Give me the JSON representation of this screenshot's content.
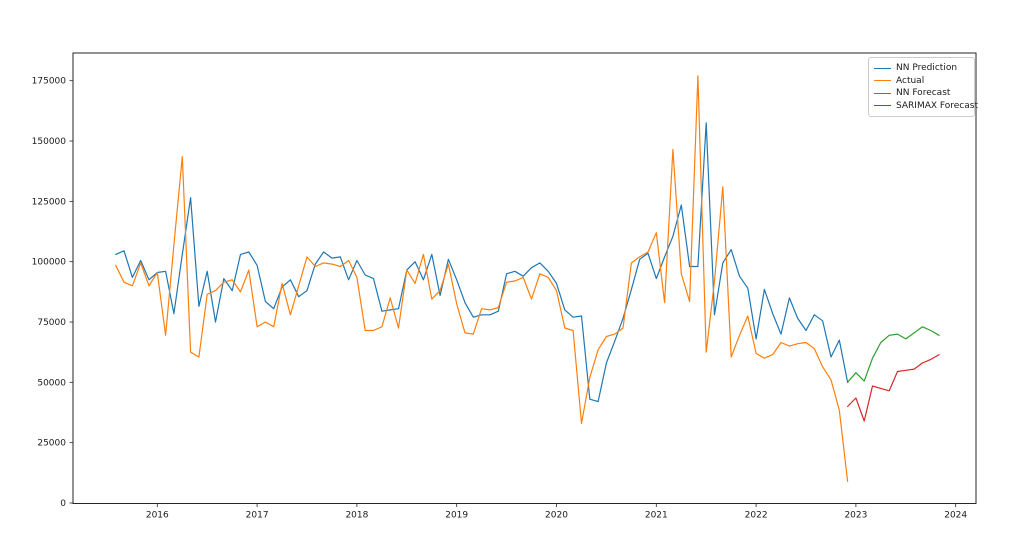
{
  "figure": {
    "background": "#ffffff",
    "plot_border_color": "#262626"
  },
  "chart_data": {
    "type": "line",
    "title": "",
    "xlabel": "",
    "ylabel": "",
    "grid": false,
    "x_axis": {
      "tick_labels": [
        "2016",
        "2017",
        "2018",
        "2019",
        "2020",
        "2021",
        "2022",
        "2023",
        "2024"
      ],
      "tick_years": [
        2016,
        2017,
        2018,
        2019,
        2020,
        2021,
        2022,
        2023,
        2024
      ]
    },
    "y_axis": {
      "tick_labels": [
        "0",
        "25000",
        "50000",
        "75000",
        "100000",
        "125000",
        "150000",
        "175000"
      ],
      "tick_values": [
        0,
        25000,
        50000,
        75000,
        100000,
        125000,
        150000,
        175000
      ],
      "ylim": [
        0,
        186500
      ]
    },
    "legend": {
      "position": "upper right",
      "entries": [
        {
          "label": "NN Prediction",
          "color": "#1f77b4"
        },
        {
          "label": "Actual",
          "color": "#ff7f0e"
        },
        {
          "label": "NN Forecast",
          "color": "#2ca02c"
        },
        {
          "label": "SARIMAX Forecast",
          "color": "#d62728"
        }
      ]
    },
    "series": [
      {
        "name": "NN Prediction",
        "color": "#1f77b4",
        "start_month": "2015-08",
        "frequency": "monthly",
        "values": [
          103000,
          104500,
          93500,
          100500,
          92500,
          95500,
          96000,
          78500,
          103000,
          126500,
          81500,
          96000,
          75000,
          93000,
          88000,
          103000,
          104000,
          98500,
          83500,
          80500,
          89500,
          92500,
          85500,
          88000,
          99000,
          104000,
          101500,
          102000,
          92500,
          100500,
          94500,
          93000,
          79500,
          80000,
          80500,
          96500,
          100000,
          92500,
          103000,
          86000,
          101000,
          92500,
          83000,
          77000,
          78000,
          78000,
          79500,
          95000,
          96000,
          94000,
          97500,
          99500,
          96000,
          91000,
          80000,
          77000,
          77500,
          43000,
          42000,
          58000,
          67000,
          76500,
          88500,
          101000,
          103500,
          93000,
          102000,
          110500,
          123500,
          98000,
          98000,
          157500,
          78000,
          99500,
          105000,
          94000,
          89000,
          68000,
          88500,
          78500,
          70000,
          85000,
          76500,
          71500,
          78000,
          75500,
          60500,
          67500,
          50000
        ]
      },
      {
        "name": "Actual",
        "color": "#ff7f0e",
        "start_month": "2015-08",
        "frequency": "monthly",
        "values": [
          98500,
          91500,
          90000,
          99500,
          90000,
          95500,
          69500,
          107000,
          143500,
          62500,
          60500,
          86500,
          88000,
          91500,
          92500,
          87500,
          96500,
          73000,
          75000,
          73000,
          91000,
          78000,
          90000,
          102000,
          98000,
          99500,
          99000,
          98000,
          100500,
          93500,
          71500,
          71500,
          73000,
          85000,
          72500,
          96500,
          91000,
          103000,
          84500,
          88000,
          99000,
          82500,
          70500,
          70000,
          80500,
          80000,
          81000,
          91500,
          92000,
          93500,
          84500,
          95000,
          93500,
          88000,
          72500,
          71500,
          33000,
          52000,
          63500,
          69000,
          70000,
          72500,
          99500,
          102000,
          104000,
          112000,
          83000,
          146500,
          95000,
          83500,
          177000,
          62500,
          92000,
          131000,
          60500,
          69500,
          77500,
          62000,
          60000,
          61500,
          66500,
          65000,
          66000,
          66500,
          64000,
          56500,
          51000,
          38500,
          9000
        ]
      },
      {
        "name": "NN Forecast",
        "color": "#2ca02c",
        "start_month": "2022-12",
        "frequency": "monthly",
        "values": [
          50000,
          54000,
          50500,
          60000,
          66500,
          69500,
          70000,
          68000,
          70500,
          73000,
          71500,
          69500
        ]
      },
      {
        "name": "SARIMAX Forecast",
        "color": "#d62728",
        "start_month": "2022-12",
        "frequency": "monthly",
        "values": [
          40000,
          43500,
          34000,
          48500,
          47500,
          46500,
          54500,
          55000,
          55500,
          58000,
          59500,
          61500
        ]
      }
    ]
  }
}
